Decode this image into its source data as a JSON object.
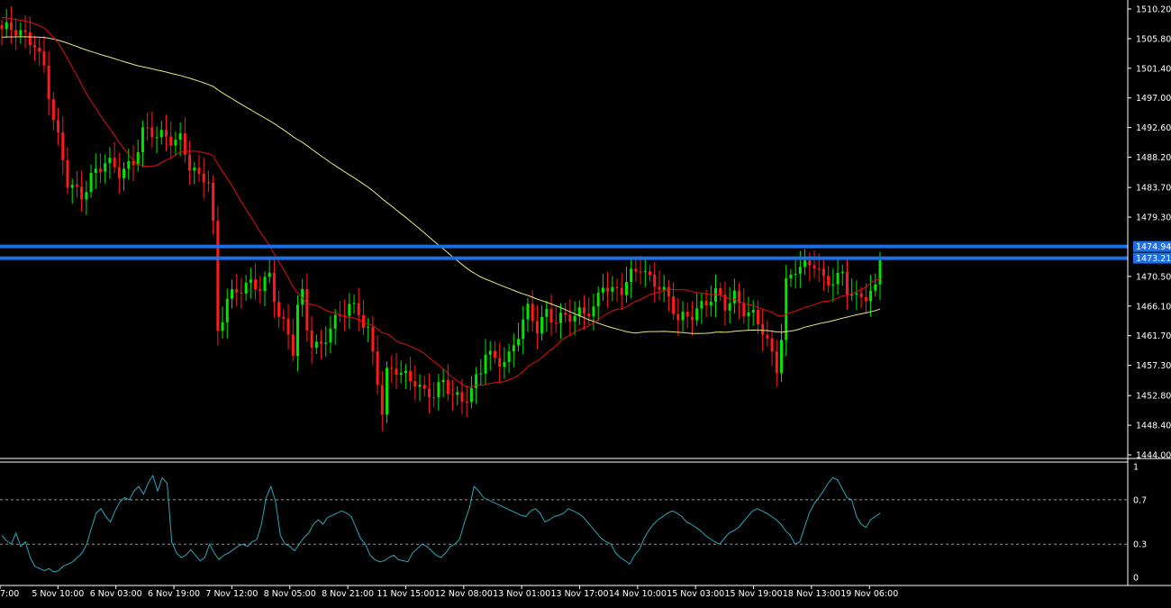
{
  "colors": {
    "background": "#000000",
    "bull_candle": "#00e600",
    "bear_candle": "#ff1a1a",
    "ma_fast": "#e01010",
    "ma_slow": "#e8e882",
    "oscillator": "#2aa6b8",
    "levels": "#1e6fe6",
    "axis_text": "#ffffff",
    "dashed_levels": "#c8c8c8"
  },
  "chart_data": [
    {
      "type": "line",
      "panel": "price",
      "title": "",
      "xlabel": "",
      "ylabel": "",
      "ylim": [
        1444.0,
        1510.2
      ],
      "y_ticks": [
        "1510.20",
        "1505.80",
        "1501.40",
        "1497.00",
        "1492.60",
        "1488.20",
        "1483.70",
        "1479.30",
        "1474.94",
        "1473.21",
        "1470.50",
        "1466.10",
        "1461.70",
        "1457.30",
        "1452.80",
        "1448.40",
        "1444.00"
      ],
      "x_ticks": [
        "7:00",
        "5 Nov 10:00",
        "6 Nov 03:00",
        "6 Nov 19:00",
        "7 Nov 12:00",
        "8 Nov 05:00",
        "8 Nov 21:00",
        "11 Nov 15:00",
        "12 Nov 08:00",
        "13 Nov 01:00",
        "13 Nov 17:00",
        "14 Nov 10:00",
        "15 Nov 03:00",
        "15 Nov 19:00",
        "18 Nov 13:00",
        "19 Nov 06:00"
      ],
      "horizontal_levels": [
        {
          "value": 1474.94,
          "label": "1474.94"
        },
        {
          "value": 1473.21,
          "label": "1473.21"
        }
      ],
      "price_anchors": [
        [
          0,
          1507.2
        ],
        [
          3,
          1506.5
        ],
        [
          7,
          1505.6
        ],
        [
          9,
          1501.8
        ],
        [
          11,
          1493.5
        ],
        [
          14,
          1484.2
        ],
        [
          17,
          1483.0
        ],
        [
          19,
          1485.5
        ],
        [
          22,
          1487.0
        ],
        [
          25,
          1486.0
        ],
        [
          28,
          1488.0
        ],
        [
          30,
          1492.0
        ],
        [
          33,
          1491.0
        ],
        [
          36,
          1491.2
        ],
        [
          38,
          1491.4
        ],
        [
          40,
          1487.0
        ],
        [
          42,
          1484.5
        ],
        [
          44,
          1484.6
        ],
        [
          45,
          1478.0
        ],
        [
          46,
          1462.5
        ],
        [
          48,
          1467.8
        ],
        [
          52,
          1468.6
        ],
        [
          55,
          1469.0
        ],
        [
          57,
          1471.2
        ],
        [
          59,
          1465.0
        ],
        [
          61,
          1461.5
        ],
        [
          62,
          1459.0
        ],
        [
          63,
          1465.5
        ],
        [
          64,
          1467.5
        ],
        [
          65,
          1463.0
        ],
        [
          66,
          1461.0
        ],
        [
          68,
          1460.5
        ],
        [
          70,
          1463.0
        ],
        [
          72,
          1464.0
        ],
        [
          74,
          1466.0
        ],
        [
          76,
          1465.5
        ],
        [
          78,
          1463.0
        ],
        [
          80,
          1455.0
        ],
        [
          81,
          1450.0
        ],
        [
          82,
          1455.5
        ],
        [
          84,
          1456.5
        ],
        [
          88,
          1455.5
        ],
        [
          90,
          1453.0
        ],
        [
          92,
          1452.5
        ],
        [
          94,
          1454.5
        ],
        [
          96,
          1453.5
        ],
        [
          98,
          1452.5
        ],
        [
          100,
          1453.5
        ],
        [
          102,
          1456.0
        ],
        [
          103,
          1459.0
        ],
        [
          105,
          1458.0
        ],
        [
          108,
          1459.0
        ],
        [
          110,
          1462.0
        ],
        [
          112,
          1465.0
        ],
        [
          114,
          1462.5
        ],
        [
          116,
          1465.5
        ],
        [
          118,
          1464.5
        ],
        [
          120,
          1464.5
        ],
        [
          122,
          1464.0
        ],
        [
          124,
          1465.0
        ],
        [
          126,
          1466.0
        ],
        [
          128,
          1470.0
        ],
        [
          130,
          1468.0
        ],
        [
          132,
          1468.0
        ],
        [
          134,
          1470.5
        ],
        [
          136,
          1472.5
        ],
        [
          138,
          1470.5
        ],
        [
          140,
          1469.0
        ],
        [
          142,
          1466.5
        ],
        [
          144,
          1464.0
        ],
        [
          146,
          1465.0
        ],
        [
          148,
          1466.0
        ],
        [
          150,
          1466.5
        ],
        [
          152,
          1467.5
        ],
        [
          154,
          1466.0
        ],
        [
          156,
          1468.0
        ],
        [
          158,
          1466.0
        ],
        [
          160,
          1464.5
        ],
        [
          162,
          1462.0
        ],
        [
          164,
          1458.5
        ],
        [
          165,
          1457.0
        ],
        [
          166,
          1462.0
        ],
        [
          167,
          1470.0
        ],
        [
          169,
          1472.0
        ],
        [
          171,
          1471.5
        ],
        [
          173,
          1472.0
        ],
        [
          175,
          1470.0
        ],
        [
          177,
          1470.5
        ],
        [
          179,
          1471.0
        ],
        [
          180,
          1468.5
        ],
        [
          182,
          1466.5
        ],
        [
          184,
          1467.5
        ],
        [
          186,
          1469.0
        ],
        [
          187,
          1474.0
        ]
      ]
    },
    {
      "type": "line",
      "panel": "oscillator",
      "ylim": [
        0,
        1
      ],
      "y_ticks": [
        "1",
        "0.7",
        "0.3",
        "0"
      ],
      "dashed_levels": [
        0.7,
        0.3
      ],
      "values": [
        0.38,
        0.33,
        0.3,
        0.4,
        0.28,
        0.32,
        0.18,
        0.1,
        0.08,
        0.06,
        0.08,
        0.05,
        0.06,
        0.1,
        0.12,
        0.14,
        0.18,
        0.22,
        0.3,
        0.45,
        0.58,
        0.62,
        0.55,
        0.5,
        0.6,
        0.68,
        0.72,
        0.7,
        0.78,
        0.82,
        0.75,
        0.85,
        0.92,
        0.78,
        0.9,
        0.85,
        0.32,
        0.22,
        0.18,
        0.2,
        0.25,
        0.2,
        0.15,
        0.18,
        0.3,
        0.22,
        0.16,
        0.2,
        0.22,
        0.25,
        0.28,
        0.3,
        0.28,
        0.32,
        0.34,
        0.48,
        0.72,
        0.82,
        0.68,
        0.38,
        0.3,
        0.28,
        0.24,
        0.3,
        0.36,
        0.4,
        0.48,
        0.52,
        0.48,
        0.54,
        0.56,
        0.58,
        0.6,
        0.58,
        0.55,
        0.45,
        0.35,
        0.3,
        0.2,
        0.16,
        0.14,
        0.15,
        0.18,
        0.2,
        0.16,
        0.15,
        0.14,
        0.22,
        0.26,
        0.3,
        0.28,
        0.24,
        0.2,
        0.18,
        0.22,
        0.28,
        0.3,
        0.35,
        0.5,
        0.62,
        0.82,
        0.78,
        0.72,
        0.7,
        0.68,
        0.66,
        0.64,
        0.62,
        0.6,
        0.58,
        0.56,
        0.55,
        0.6,
        0.62,
        0.58,
        0.5,
        0.52,
        0.55,
        0.56,
        0.58,
        0.62,
        0.6,
        0.58,
        0.55,
        0.5,
        0.45,
        0.4,
        0.35,
        0.32,
        0.3,
        0.22,
        0.18,
        0.15,
        0.12,
        0.2,
        0.25,
        0.35,
        0.42,
        0.48,
        0.52,
        0.55,
        0.58,
        0.6,
        0.58,
        0.55,
        0.5,
        0.48,
        0.45,
        0.42,
        0.38,
        0.35,
        0.32,
        0.3,
        0.35,
        0.4,
        0.42,
        0.45,
        0.5,
        0.55,
        0.6,
        0.62,
        0.6,
        0.58,
        0.55,
        0.52,
        0.48,
        0.42,
        0.38,
        0.3,
        0.32,
        0.45,
        0.58,
        0.66,
        0.72,
        0.78,
        0.85,
        0.9,
        0.88,
        0.8,
        0.72,
        0.7,
        0.55,
        0.48,
        0.45,
        0.52,
        0.55,
        0.58
      ]
    }
  ]
}
